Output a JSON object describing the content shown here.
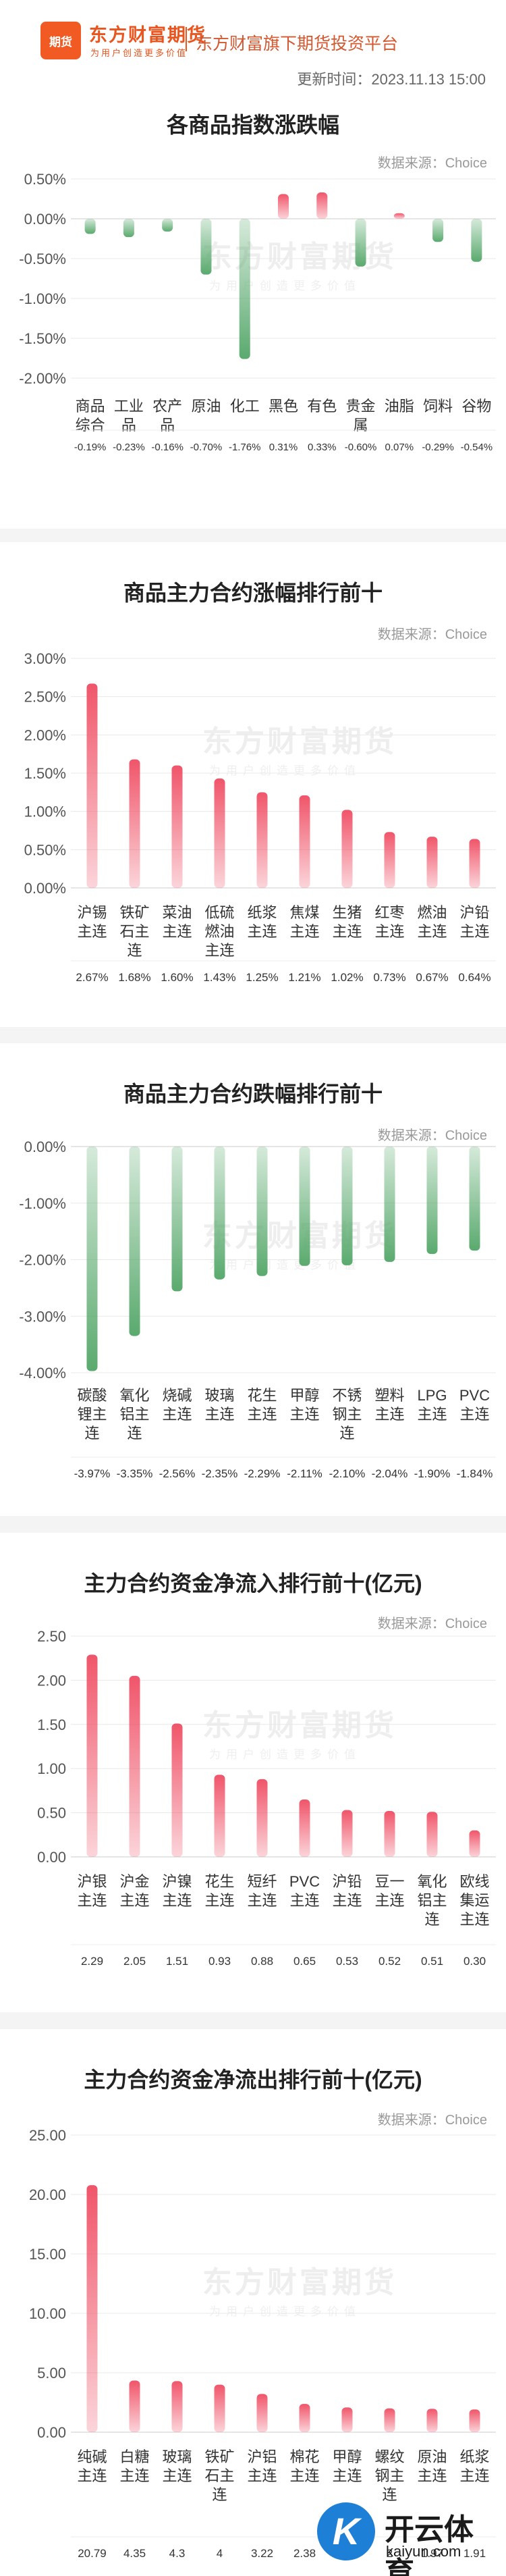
{
  "header": {
    "logo_text": "期货",
    "brand_name": "东方财富期货",
    "slogan": "为用户创造更多价值",
    "platform": "东方财富旗下期货投资平台",
    "updated": "更新时间：2023.11.13 15:00"
  },
  "watermark": {
    "name": "东方财富期货",
    "slogan": "为用户创造更多价值"
  },
  "footer": {
    "logo_mark": "K",
    "name": "开云体育",
    "url": "kaiyun.com"
  },
  "colors": {
    "up": "#f0556a",
    "down": "#5aaa6e",
    "axis_text": "#555555",
    "grid": "#e8e8e8"
  },
  "sections": [
    {
      "title": "各商品指数涨跌幅",
      "source": "数据来源：Choice",
      "chart_data": {
        "type": "bar",
        "categories": [
          "商品综合",
          "工业品",
          "农产品",
          "原油",
          "化工",
          "黑色",
          "有色",
          "贵金属",
          "油脂",
          "饲料",
          "谷物"
        ],
        "values": [
          -0.19,
          -0.23,
          -0.16,
          -0.7,
          -1.76,
          0.31,
          0.33,
          -0.6,
          0.07,
          -0.29,
          -0.54
        ],
        "value_labels": [
          "-0.19%",
          "-0.23%",
          "-0.16%",
          "-0.70%",
          "-1.76%",
          "0.31%",
          "0.33%",
          "-0.60%",
          "0.07%",
          "-0.29%",
          "-0.54%"
        ],
        "y_ticks": [
          "0.50%",
          "0.00%",
          "-0.50%",
          "-1.00%",
          "-1.50%",
          "-2.00%"
        ],
        "ylim": [
          -2.0,
          0.5
        ]
      }
    },
    {
      "title": "商品主力合约涨幅排行前十",
      "source": "数据来源：Choice",
      "chart_data": {
        "type": "bar",
        "categories": [
          "沪锡主连",
          "铁矿石主连",
          "菜油主连",
          "低硫燃油主连",
          "纸浆主连",
          "焦煤主连",
          "生猪主连",
          "红枣主连",
          "燃油主连",
          "沪铅主连"
        ],
        "values": [
          2.67,
          1.68,
          1.6,
          1.43,
          1.25,
          1.21,
          1.02,
          0.73,
          0.67,
          0.64
        ],
        "value_labels": [
          "2.67%",
          "1.68%",
          "1.60%",
          "1.43%",
          "1.25%",
          "1.21%",
          "1.02%",
          "0.73%",
          "0.67%",
          "0.64%"
        ],
        "y_ticks": [
          "3.00%",
          "2.50%",
          "2.00%",
          "1.50%",
          "1.00%",
          "0.50%",
          "0.00%"
        ],
        "ylim": [
          0,
          3.0
        ]
      }
    },
    {
      "title": "商品主力合约跌幅排行前十",
      "source": "数据来源：Choice",
      "chart_data": {
        "type": "bar",
        "categories": [
          "碳酸锂主连",
          "氧化铝主连",
          "烧碱主连",
          "玻璃主连",
          "花生主连",
          "甲醇主连",
          "不锈钢主连",
          "塑料主连",
          "LPG主连",
          "PVC主连"
        ],
        "values": [
          -3.97,
          -3.35,
          -2.56,
          -2.35,
          -2.29,
          -2.11,
          -2.1,
          -2.04,
          -1.9,
          -1.84
        ],
        "value_labels": [
          "-3.97%",
          "-3.35%",
          "-2.56%",
          "-2.35%",
          "-2.29%",
          "-2.11%",
          "-2.10%",
          "-2.04%",
          "-1.90%",
          "-1.84%"
        ],
        "y_ticks": [
          "0.00%",
          "-1.00%",
          "-2.00%",
          "-3.00%",
          "-4.00%"
        ],
        "ylim": [
          -4.0,
          0
        ]
      }
    },
    {
      "title": "主力合约资金净流入排行前十(亿元)",
      "source": "数据来源：Choice",
      "chart_data": {
        "type": "bar",
        "categories": [
          "沪银主连",
          "沪金主连",
          "沪镍主连",
          "花生主连",
          "短纤主连",
          "PVC主连",
          "沪铅主连",
          "豆一主连",
          "氧化铝主连",
          "欧线集运主连"
        ],
        "values": [
          2.29,
          2.05,
          1.51,
          0.93,
          0.88,
          0.65,
          0.53,
          0.52,
          0.51,
          0.3
        ],
        "value_labels": [
          "2.29",
          "2.05",
          "1.51",
          "0.93",
          "0.88",
          "0.65",
          "0.53",
          "0.52",
          "0.51",
          "0.30"
        ],
        "y_ticks": [
          "2.50",
          "2.00",
          "1.50",
          "1.00",
          "0.50",
          "0.00"
        ],
        "ylim": [
          0,
          2.5
        ]
      }
    },
    {
      "title": "主力合约资金净流出排行前十(亿元)",
      "source": "数据来源：Choice",
      "chart_data": {
        "type": "bar",
        "categories": [
          "纯碱主连",
          "白糖主连",
          "玻璃主连",
          "铁矿石主连",
          "沪铝主连",
          "棉花主连",
          "甲醇主连",
          "螺纹钢主连",
          "原油主连",
          "纸浆主连"
        ],
        "values": [
          20.79,
          4.35,
          4.3,
          4,
          3.22,
          2.38,
          2.08,
          2,
          1.97,
          1.91
        ],
        "value_labels": [
          "20.79",
          "4.35",
          "4.3",
          "4",
          "3.22",
          "2.38",
          "2.08",
          "2",
          "1.97",
          "1.91"
        ],
        "y_ticks": [
          "25.00",
          "20.00",
          "15.00",
          "10.00",
          "5.00",
          "0.00"
        ],
        "ylim": [
          0,
          25
        ]
      }
    }
  ]
}
